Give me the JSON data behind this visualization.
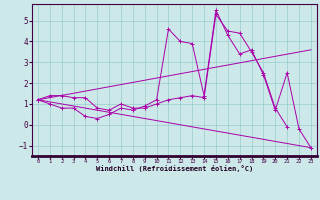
{
  "line1_x": [
    0,
    1,
    2,
    3,
    4,
    5,
    6,
    7,
    8,
    9,
    10,
    11,
    12,
    13,
    14,
    15,
    16,
    17,
    18,
    19,
    20,
    21
  ],
  "line1_y": [
    1.2,
    1.4,
    1.4,
    1.3,
    1.3,
    0.8,
    0.7,
    1.0,
    0.8,
    0.8,
    1.0,
    1.2,
    1.3,
    1.4,
    1.3,
    5.3,
    4.5,
    4.4,
    3.5,
    2.5,
    0.8,
    -0.1
  ],
  "line2_x": [
    0,
    1,
    2,
    3,
    4,
    5,
    6,
    7,
    8,
    9,
    10,
    11,
    12,
    13,
    14,
    15,
    16,
    17,
    18,
    19,
    20,
    21,
    22,
    23
  ],
  "line2_y": [
    1.2,
    1.0,
    0.8,
    0.8,
    0.4,
    0.3,
    0.5,
    0.8,
    0.7,
    0.9,
    1.2,
    4.6,
    4.0,
    3.9,
    1.4,
    5.5,
    4.3,
    3.4,
    3.6,
    2.4,
    0.7,
    2.5,
    -0.2,
    -1.1
  ],
  "line3_x": [
    0,
    23
  ],
  "line3_y": [
    1.2,
    3.6
  ],
  "line4_x": [
    0,
    23
  ],
  "line4_y": [
    1.2,
    -1.1
  ],
  "color": "#aa00aa",
  "bg_color": "#cce8e8",
  "grid_color": "#99cccc",
  "xlim": [
    0,
    23
  ],
  "ylim": [
    -1.5,
    5.8
  ],
  "yticks": [
    -1,
    0,
    1,
    2,
    3,
    4,
    5
  ],
  "xticks": [
    0,
    1,
    2,
    3,
    4,
    5,
    6,
    7,
    8,
    9,
    10,
    11,
    12,
    13,
    14,
    15,
    16,
    17,
    18,
    19,
    20,
    21,
    22,
    23
  ],
  "xlabel": "Windchill (Refroidissement éolien,°C)",
  "figwidth": 3.2,
  "figheight": 2.0,
  "dpi": 100
}
